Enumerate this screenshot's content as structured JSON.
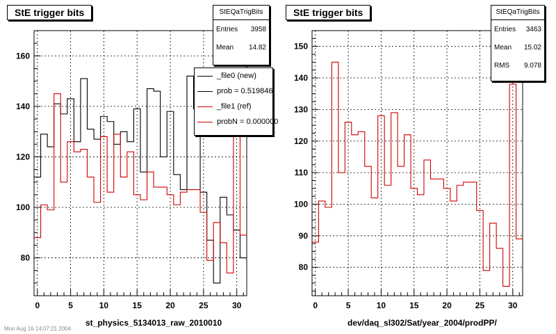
{
  "pads": [
    {
      "title": "StE trigger bits",
      "stats": {
        "name": "StEQaTrigBits",
        "rows": [
          {
            "label": "Entries",
            "value": "3958"
          },
          {
            "label": "Mean",
            "value": "14.82"
          }
        ]
      },
      "legend": [
        {
          "label": "_file0 (new)",
          "color": "#000000"
        },
        {
          "label": "prob = 0.519846",
          "color": "#000000"
        },
        {
          "label": "_file1 (ref)",
          "color": "#d00000"
        },
        {
          "label": "probN = 0.000000",
          "color": "#d00000"
        }
      ],
      "xlabel": "st_physics_5134013_raw_2010010"
    },
    {
      "title": "StE trigger bits",
      "stats": {
        "name": "StEQaTrigBits",
        "rows": [
          {
            "label": "Entries",
            "value": "3463"
          },
          {
            "label": "Mean",
            "value": "15.02"
          },
          {
            "label": "RMS",
            "value": "9.078"
          }
        ]
      },
      "xlabel": "dev/daq_sl302/Sat/year_2004/prodPP/"
    }
  ],
  "footer": "Mon Aug 16 14:07:21 2004",
  "chart_data": [
    {
      "type": "histogram",
      "title": "StE trigger bits",
      "xlabel": "st_physics_5134013_raw_2010010",
      "xlim": [
        -0.5,
        31.5
      ],
      "ylim": [
        65,
        170
      ],
      "xticks": [
        0,
        5,
        10,
        15,
        20,
        25,
        30
      ],
      "yticks": [
        80,
        100,
        120,
        140,
        160
      ],
      "grid": true,
      "legend_position": "top-right",
      "series": [
        {
          "name": "_file0 (new)",
          "color": "#000000",
          "values": [
            112,
            129,
            124,
            141,
            137,
            143,
            126,
            151,
            131,
            127,
            136,
            134,
            125,
            130,
            126,
            139,
            114,
            147,
            146,
            120,
            138,
            113,
            107,
            152,
            139,
            106,
            87,
            70,
            104,
            97,
            91,
            80
          ]
        },
        {
          "name": "_file1 (ref)",
          "color": "#d00000",
          "values": [
            88,
            101,
            99,
            145,
            110,
            126,
            122,
            123,
            112,
            102,
            128,
            106,
            129,
            112,
            122,
            105,
            103,
            114,
            108,
            108,
            105,
            101,
            106,
            107,
            107,
            98,
            79,
            94,
            86,
            74,
            138,
            89
          ]
        }
      ]
    },
    {
      "type": "histogram",
      "title": "StE trigger bits",
      "xlabel": "dev/daq_sl302/Sat/year_2004/prodPP/",
      "xlim": [
        -0.5,
        31.5
      ],
      "ylim": [
        71,
        155
      ],
      "xticks": [
        0,
        5,
        10,
        15,
        20,
        25,
        30
      ],
      "yticks": [
        80,
        90,
        100,
        110,
        120,
        130,
        140,
        150
      ],
      "grid": true,
      "series": [
        {
          "name": "",
          "color": "#d00000",
          "values": [
            88,
            101,
            99,
            145,
            110,
            126,
            122,
            123,
            112,
            102,
            128,
            106,
            129,
            112,
            122,
            105,
            103,
            114,
            108,
            108,
            105,
            101,
            106,
            107,
            107,
            98,
            79,
            94,
            86,
            74,
            138,
            89
          ]
        }
      ]
    }
  ]
}
